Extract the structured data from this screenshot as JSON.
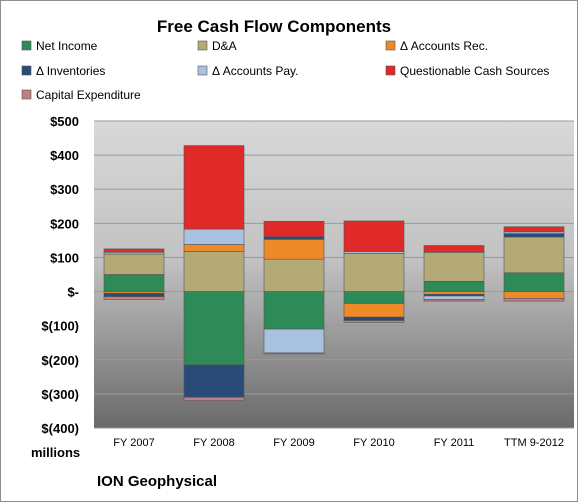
{
  "chart_data": {
    "type": "bar",
    "stacked": true,
    "title": "Free Cash Flow Components",
    "categories": [
      "FY 2007",
      "FY 2008",
      "FY 2009",
      "FY 2010",
      "FY 2011",
      "TTM 9-2012"
    ],
    "ylim": [
      -400,
      500
    ],
    "yticks": [
      500,
      400,
      300,
      200,
      100,
      0,
      -100,
      -200,
      -300,
      -400
    ],
    "ytick_labels": [
      "$500",
      "$400",
      "$300",
      "$200",
      "$100",
      "$-",
      "$(100)",
      "$(200)",
      "$(300)",
      "$(400)"
    ],
    "ylabel": "millions",
    "grid": true,
    "legend_position": "top",
    "series": [
      {
        "name": "Net Income",
        "color": "#2e8b57",
        "values": [
          50,
          -215,
          -110,
          -35,
          30,
          55
        ]
      },
      {
        "name": "D&A",
        "color": "#b3aa78",
        "values": [
          60,
          118,
          95,
          112,
          85,
          105
        ]
      },
      {
        "name": "Δ Accounts Rec.",
        "color": "#ee8a2a",
        "values": [
          -5,
          20,
          58,
          -40,
          -8,
          -20
        ]
      },
      {
        "name": "Δ Inventories",
        "color": "#2a4a78",
        "values": [
          -10,
          -95,
          8,
          -10,
          -5,
          10
        ]
      },
      {
        "name": "Δ Accounts Pay.",
        "color": "#a9c2e0",
        "values": [
          5,
          45,
          -70,
          5,
          -10,
          5
        ]
      },
      {
        "name": "Questionable Cash Sources",
        "color": "#e02a2a",
        "values": [
          10,
          245,
          45,
          90,
          20,
          15
        ]
      },
      {
        "name": "Capital Expenditure",
        "color": "#c27f7f",
        "values": [
          -8,
          -10,
          -3,
          -5,
          -5,
          -8
        ]
      }
    ]
  },
  "footer": {
    "company": "ION Geophysical"
  }
}
